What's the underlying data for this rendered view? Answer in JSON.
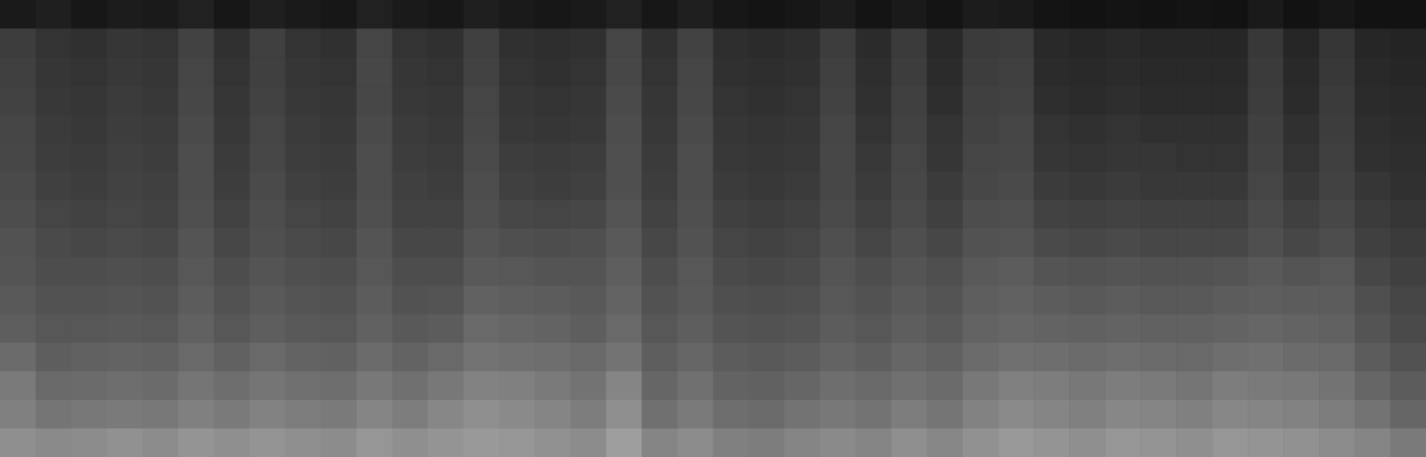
{
  "chart_data": {
    "type": "heatmap",
    "tick_labels": false,
    "zlim": [
      0,
      100
    ],
    "cells": [
      [
        10,
        12,
        9,
        11,
        10,
        13,
        9,
        12,
        10,
        9,
        13,
        10,
        9,
        12,
        10,
        9,
        10,
        13,
        9,
        12,
        9,
        8,
        9,
        11,
        8,
        10,
        8,
        11,
        10,
        8,
        7,
        8,
        7,
        8,
        7,
        10,
        7,
        9,
        7,
        7
      ],
      [
        24,
        20,
        19,
        21,
        20,
        26,
        19,
        25,
        20,
        19,
        27,
        20,
        19,
        25,
        19,
        18,
        19,
        27,
        19,
        26,
        18,
        17,
        18,
        24,
        17,
        23,
        16,
        23,
        24,
        16,
        15,
        16,
        15,
        15,
        15,
        22,
        15,
        21,
        15,
        14
      ],
      [
        25,
        21,
        20,
        22,
        21,
        27,
        20,
        25,
        21,
        20,
        28,
        21,
        20,
        26,
        20,
        19,
        20,
        28,
        20,
        27,
        19,
        18,
        19,
        25,
        18,
        24,
        17,
        24,
        25,
        17,
        16,
        17,
        16,
        16,
        16,
        23,
        16,
        22,
        16,
        15
      ],
      [
        26,
        22,
        21,
        23,
        22,
        28,
        21,
        26,
        22,
        21,
        28,
        22,
        21,
        27,
        21,
        20,
        21,
        29,
        21,
        28,
        20,
        19,
        20,
        26,
        19,
        25,
        18,
        25,
        26,
        18,
        17,
        18,
        17,
        17,
        17,
        24,
        17,
        23,
        17,
        16
      ],
      [
        27,
        23,
        22,
        24,
        23,
        29,
        22,
        27,
        23,
        22,
        29,
        23,
        22,
        28,
        22,
        21,
        22,
        30,
        22,
        29,
        21,
        20,
        21,
        27,
        20,
        26,
        20,
        26,
        27,
        20,
        19,
        20,
        19,
        19,
        19,
        25,
        19,
        24,
        18,
        17
      ],
      [
        28,
        24,
        23,
        25,
        24,
        30,
        23,
        28,
        24,
        23,
        30,
        24,
        23,
        29,
        24,
        23,
        24,
        31,
        23,
        30,
        22,
        21,
        22,
        28,
        22,
        27,
        21,
        27,
        28,
        21,
        20,
        21,
        21,
        20,
        20,
        26,
        20,
        25,
        19,
        18
      ],
      [
        29,
        25,
        24,
        26,
        25,
        30,
        24,
        29,
        25,
        24,
        30,
        25,
        24,
        30,
        25,
        24,
        25,
        31,
        24,
        30,
        23,
        22,
        23,
        28,
        23,
        28,
        23,
        28,
        29,
        23,
        22,
        23,
        22,
        22,
        22,
        27,
        22,
        26,
        21,
        19
      ],
      [
        30,
        27,
        26,
        27,
        26,
        31,
        26,
        30,
        27,
        26,
        31,
        26,
        26,
        31,
        28,
        27,
        28,
        33,
        26,
        31,
        25,
        24,
        25,
        29,
        25,
        29,
        25,
        30,
        31,
        26,
        25,
        26,
        25,
        25,
        25,
        29,
        25,
        28,
        23,
        21
      ],
      [
        32,
        29,
        28,
        29,
        28,
        33,
        28,
        31,
        29,
        28,
        33,
        28,
        28,
        33,
        31,
        30,
        31,
        35,
        28,
        32,
        27,
        26,
        27,
        31,
        27,
        31,
        28,
        32,
        33,
        29,
        28,
        29,
        28,
        28,
        28,
        31,
        28,
        30,
        25,
        23
      ],
      [
        33,
        30,
        30,
        31,
        30,
        34,
        30,
        33,
        31,
        30,
        34,
        30,
        30,
        35,
        34,
        33,
        33,
        37,
        30,
        34,
        29,
        28,
        29,
        33,
        30,
        33,
        31,
        35,
        36,
        33,
        32,
        33,
        32,
        32,
        33,
        35,
        33,
        34,
        28,
        25
      ],
      [
        35,
        32,
        32,
        33,
        32,
        36,
        32,
        35,
        33,
        32,
        36,
        32,
        33,
        38,
        37,
        36,
        35,
        39,
        32,
        35,
        31,
        30,
        31,
        34,
        32,
        35,
        33,
        37,
        38,
        36,
        35,
        36,
        35,
        35,
        36,
        37,
        36,
        36,
        31,
        27
      ],
      [
        37,
        34,
        34,
        35,
        34,
        38,
        34,
        37,
        35,
        34,
        38,
        35,
        36,
        41,
        40,
        39,
        37,
        41,
        34,
        37,
        33,
        32,
        33,
        36,
        34,
        37,
        35,
        39,
        40,
        39,
        38,
        39,
        38,
        38,
        39,
        40,
        39,
        38,
        33,
        29
      ],
      [
        42,
        37,
        38,
        39,
        38,
        41,
        38,
        41,
        39,
        38,
        42,
        39,
        41,
        45,
        44,
        43,
        41,
        45,
        37,
        40,
        36,
        35,
        36,
        39,
        37,
        40,
        38,
        42,
        44,
        43,
        42,
        43,
        42,
        41,
        43,
        44,
        42,
        41,
        36,
        32
      ],
      [
        48,
        41,
        42,
        43,
        42,
        46,
        43,
        46,
        44,
        43,
        47,
        44,
        47,
        51,
        50,
        48,
        45,
        52,
        40,
        44,
        39,
        38,
        40,
        43,
        41,
        44,
        42,
        47,
        50,
        49,
        47,
        49,
        48,
        46,
        49,
        48,
        47,
        45,
        40,
        36
      ],
      [
        50,
        46,
        47,
        48,
        47,
        50,
        48,
        51,
        49,
        48,
        52,
        49,
        53,
        56,
        54,
        52,
        49,
        56,
        44,
        48,
        43,
        42,
        45,
        47,
        45,
        49,
        46,
        51,
        54,
        52,
        50,
        53,
        52,
        50,
        53,
        52,
        51,
        49,
        45,
        40
      ],
      [
        56,
        54,
        55,
        57,
        55,
        58,
        56,
        58,
        56,
        55,
        59,
        56,
        58,
        60,
        59,
        57,
        55,
        62,
        52,
        55,
        50,
        49,
        52,
        54,
        52,
        56,
        53,
        57,
        60,
        58,
        56,
        59,
        58,
        56,
        59,
        58,
        57,
        55,
        52,
        48
      ]
    ]
  }
}
